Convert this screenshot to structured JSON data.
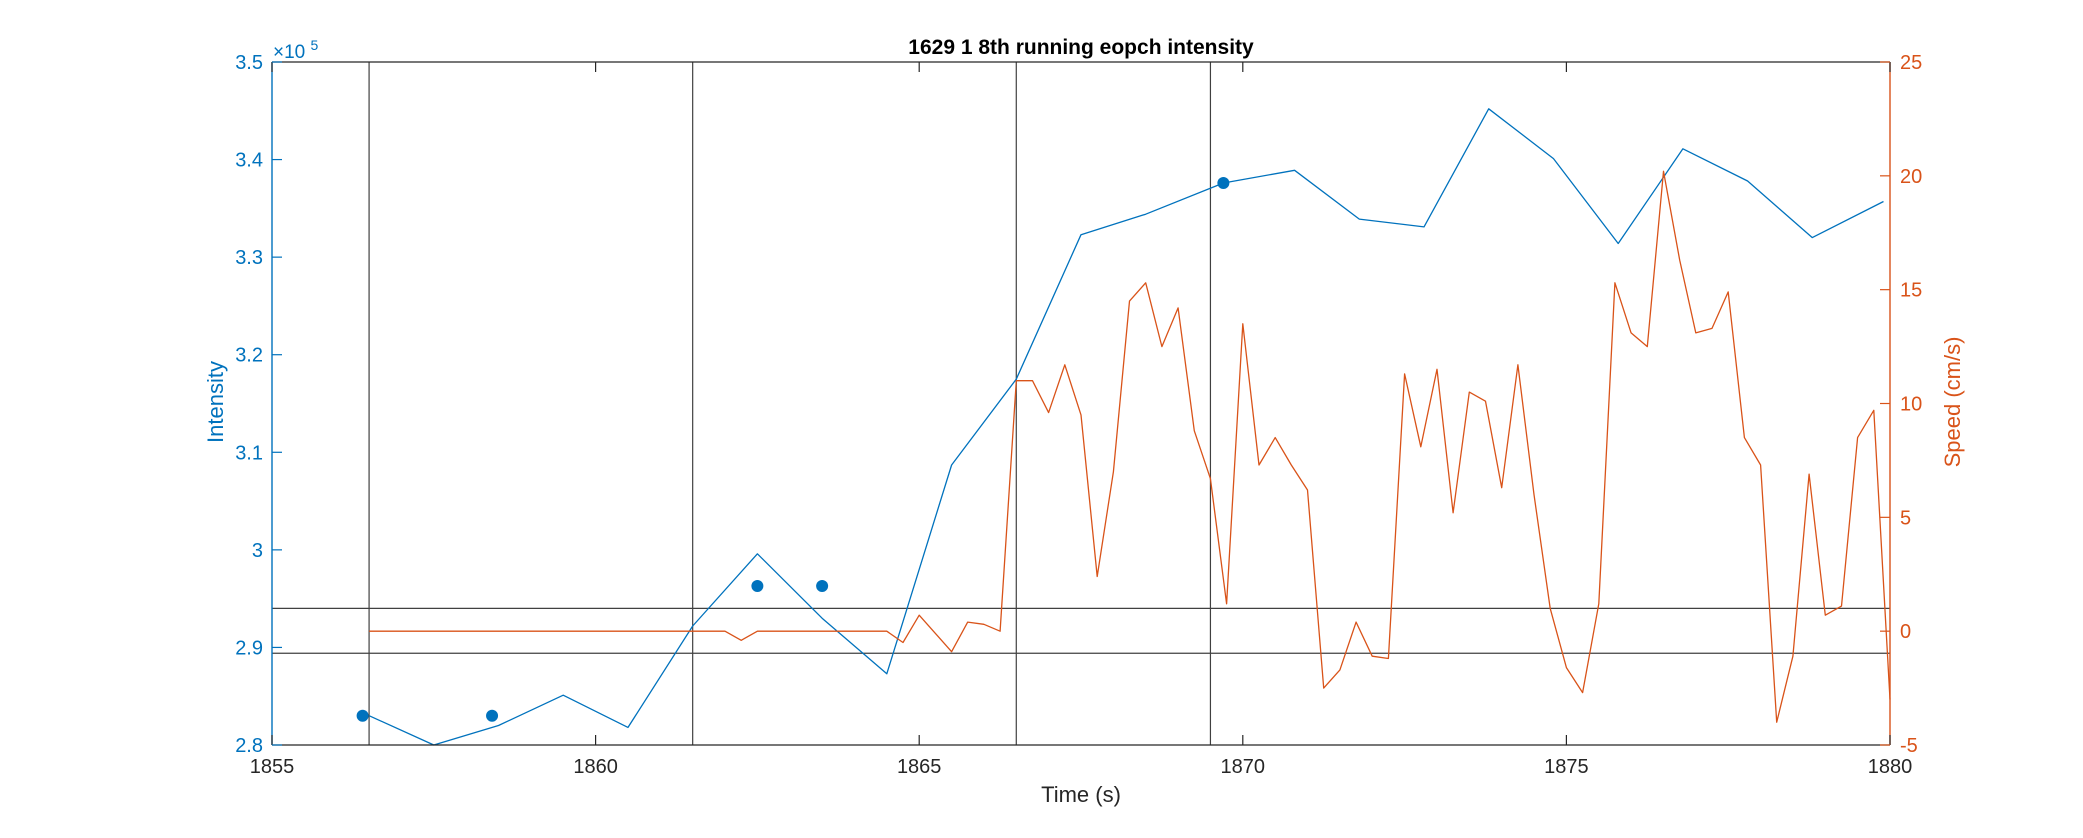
{
  "chart_data": {
    "type": "line",
    "title": "1629 1 8th running eopch intensity",
    "xlabel": "Time (s)",
    "ylabel_left": "Intensity",
    "ylabel_right": "Speed (cm/s)",
    "left_exponent_label": "×10",
    "left_exponent_power": "5",
    "xlim": [
      1855,
      1880
    ],
    "ylim_left": [
      2.8,
      3.5
    ],
    "ylim_right": [
      -5,
      25
    ],
    "x_ticks": [
      "1855",
      "1860",
      "1865",
      "1870",
      "1875",
      "1880"
    ],
    "y_left_ticks": [
      "2.8",
      "2.9",
      "3",
      "3.1",
      "3.2",
      "3.3",
      "3.4",
      "3.5"
    ],
    "y_right_ticks": [
      "-5",
      "0",
      "5",
      "10",
      "15",
      "20",
      "25"
    ],
    "colors": {
      "left": "#0072BD",
      "right": "#D95319",
      "ref": "#404040"
    },
    "grid": false,
    "vertical_markers": [
      1856.5,
      1861.5,
      1866.5,
      1869.5
    ],
    "horizontal_markers_left": [
      2.894,
      2.94
    ],
    "series": [
      {
        "axis": "left",
        "x": [
          1856.5,
          1857.5,
          1858.5,
          1859.5,
          1860.5,
          1861.5,
          1862.5,
          1863.5,
          1864.5,
          1865.5,
          1866.5,
          1867.5,
          1868.5,
          1869.7,
          1870.8,
          1871.8,
          1872.8,
          1873.8,
          1874.8,
          1875.8,
          1876.8,
          1877.8,
          1878.8,
          1879.9
        ],
        "y": [
          2.83,
          2.8,
          2.82,
          2.851,
          2.818,
          2.922,
          2.996,
          2.93,
          2.873,
          3.087,
          3.175,
          3.323,
          3.344,
          3.376,
          3.389,
          3.339,
          3.331,
          3.452,
          3.401,
          3.314,
          3.411,
          3.378,
          3.32,
          3.357
        ]
      },
      {
        "axis": "left",
        "type": "scatter",
        "x": [
          1856.4,
          1858.4,
          1862.5,
          1863.5,
          1869.7
        ],
        "y": [
          2.83,
          2.83,
          2.963,
          2.963,
          3.376
        ]
      },
      {
        "axis": "right",
        "x": [
          1856.5,
          1857.0,
          1857.5,
          1858.0,
          1858.5,
          1859.0,
          1859.5,
          1860.0,
          1860.5,
          1861.0,
          1861.5,
          1861.8,
          1862.0,
          1862.25,
          1862.5,
          1862.75,
          1863.0,
          1863.5,
          1864.0,
          1864.25,
          1864.5,
          1864.75,
          1865.0,
          1865.25,
          1865.5,
          1865.75,
          1866.0,
          1866.25,
          1866.5,
          1866.75,
          1867.0,
          1867.25,
          1867.5,
          1867.75,
          1868.0,
          1868.25,
          1868.5,
          1868.75,
          1869.0,
          1869.25,
          1869.5,
          1869.75,
          1870.0,
          1870.25,
          1870.5,
          1870.75,
          1871.0,
          1871.25,
          1871.5,
          1871.75,
          1872.0,
          1872.25,
          1872.5,
          1872.75,
          1873.0,
          1873.25,
          1873.5,
          1873.75,
          1874.0,
          1874.25,
          1874.5,
          1874.75,
          1875.0,
          1875.25,
          1875.5,
          1875.75,
          1876.0,
          1876.25,
          1876.5,
          1876.75,
          1877.0,
          1877.25,
          1877.5,
          1877.75,
          1878.0,
          1878.25,
          1878.5,
          1878.75,
          1879.0,
          1879.25,
          1879.5,
          1879.75,
          1880.0
        ],
        "y": [
          0,
          0,
          0,
          0,
          0,
          0,
          0,
          0,
          0,
          0,
          0,
          0,
          0,
          -0.4,
          0,
          0,
          0,
          0,
          0,
          0,
          0,
          -0.5,
          0.7,
          -0.1,
          -0.9,
          0.4,
          0.3,
          0,
          11,
          11,
          9.6,
          11.7,
          9.5,
          2.4,
          7,
          14.5,
          15.3,
          12.5,
          14.2,
          8.8,
          6.7,
          1.2,
          13.5,
          7.3,
          8.5,
          7.3,
          6.2,
          -2.5,
          -1.7,
          0.4,
          -1.1,
          -1.2,
          11.3,
          8.1,
          11.5,
          5.2,
          10.5,
          10.1,
          6.3,
          11.7,
          6,
          1,
          -1.6,
          -2.7,
          1.2,
          15.3,
          13.1,
          12.5,
          20.2,
          16.3,
          13.1,
          13.3,
          14.9,
          8.5,
          7.3,
          -4,
          -1.1,
          6.9,
          0.7,
          1.1,
          8.5,
          9.7,
          -3
        ]
      }
    ]
  }
}
